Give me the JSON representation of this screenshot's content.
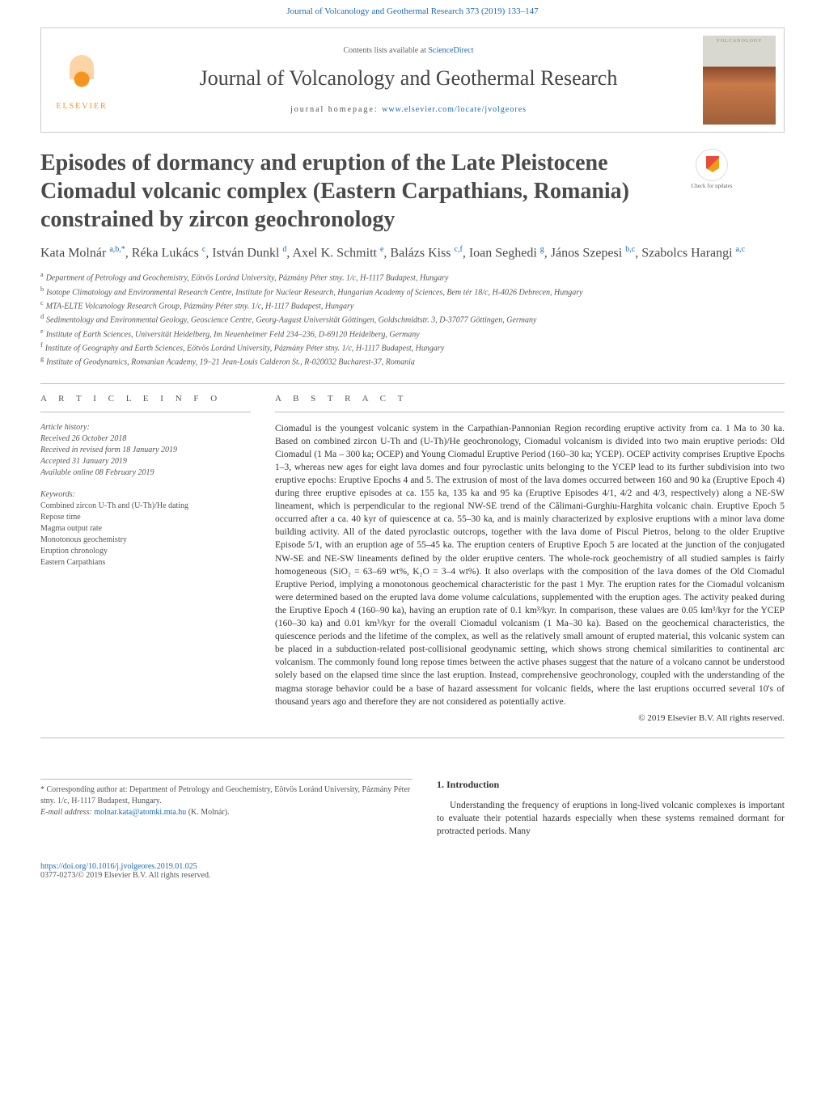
{
  "top_link": "Journal of Volcanology and Geothermal Research 373 (2019) 133–147",
  "header": {
    "contents_prefix": "Contents lists available at ",
    "contents_link": "ScienceDirect",
    "journal": "Journal of Volcanology and Geothermal Research",
    "homepage_prefix": "journal homepage: ",
    "homepage_url": "www.elsevier.com/locate/jvolgeores",
    "publisher": "ELSEVIER",
    "cover_label": "VOLCANOLOGY"
  },
  "check_updates": "Check for updates",
  "title": "Episodes of dormancy and eruption of the Late Pleistocene Ciomadul volcanic complex (Eastern Carpathians, Romania) constrained by zircon geochronology",
  "authors_html": "Kata Molnár <sup>a,b,*</sup>, Réka Lukács <sup>c</sup>, István Dunkl <sup>d</sup>, Axel K. Schmitt <sup>e</sup>, Balázs Kiss <sup>c,f</sup>, Ioan Seghedi <sup>g</sup>, János Szepesi <sup>b,c</sup>, Szabolcs Harangi <sup>a,c</sup>",
  "affiliations": [
    {
      "s": "a",
      "t": "Department of Petrology and Geochemistry, Eötvös Loránd University, Pázmány Péter stny. 1/c, H-1117 Budapest, Hungary"
    },
    {
      "s": "b",
      "t": "Isotope Climatology and Environmental Research Centre, Institute for Nuclear Research, Hungarian Academy of Sciences, Bem tér 18/c, H-4026 Debrecen, Hungary"
    },
    {
      "s": "c",
      "t": "MTA-ELTE Volcanology Research Group, Pázmány Péter stny. 1/c, H-1117 Budapest, Hungary"
    },
    {
      "s": "d",
      "t": "Sedimentology and Environmental Geology, Geoscience Centre, Georg-August Universität Göttingen, Goldschmidtstr. 3, D-37077 Göttingen, Germany"
    },
    {
      "s": "e",
      "t": "Institute of Earth Sciences, Universität Heidelberg, Im Neuenheimer Feld 234–236, D-69120 Heidelberg, Germany"
    },
    {
      "s": "f",
      "t": "Institute of Geography and Earth Sciences, Eötvös Loránd University, Pázmány Péter stny. 1/c, H-1117 Budapest, Hungary"
    },
    {
      "s": "g",
      "t": "Institute of Geodynamics, Romanian Academy, 19–21 Jean-Louis Calderon St., R-020032 Bucharest-37, Romania"
    }
  ],
  "article_info": {
    "head": "A R T I C L E   I N F O",
    "history_label": "Article history:",
    "history": [
      "Received 26 October 2018",
      "Received in revised form 18 January 2019",
      "Accepted 31 January 2019",
      "Available online 08 February 2019"
    ],
    "keywords_label": "Keywords:",
    "keywords": [
      "Combined zircon U-Th and (U-Th)/He dating",
      "Repose time",
      "Magma output rate",
      "Monotonous geochemistry",
      "Eruption chronology",
      "Eastern Carpathians"
    ]
  },
  "abstract": {
    "head": "A B S T R A C T",
    "text": "Ciomadul is the youngest volcanic system in the Carpathian-Pannonian Region recording eruptive activity from ca. 1 Ma to 30 ka. Based on combined zircon U-Th and (U-Th)/He geochronology, Ciomadul volcanism is divided into two main eruptive periods: Old Ciomadul (1 Ma – 300 ka; OCEP) and Young Ciomadul Eruptive Period (160–30 ka; YCEP). OCEP activity comprises Eruptive Epochs 1–3, whereas new ages for eight lava domes and four pyroclastic units belonging to the YCEP lead to its further subdivision into two eruptive epochs: Eruptive Epochs 4 and 5. The extrusion of most of the lava domes occurred between 160 and 90 ka (Eruptive Epoch 4) during three eruptive episodes at ca. 155 ka, 135 ka and 95 ka (Eruptive Episodes 4/1, 4/2 and 4/3, respectively) along a NE-SW lineament, which is perpendicular to the regional NW-SE trend of the Călimani-Gurghiu-Harghita volcanic chain. Eruptive Epoch 5 occurred after a ca. 40 kyr of quiescence at ca. 55–30 ka, and is mainly characterized by explosive eruptions with a minor lava dome building activity. All of the dated pyroclastic outcrops, together with the lava dome of Piscul Pietros, belong to the older Eruptive Episode 5/1, with an eruption age of 55–45 ka. The eruption centers of Eruptive Epoch 5 are located at the junction of the conjugated NW-SE and NE-SW lineaments defined by the older eruptive centers. The whole-rock geochemistry of all studied samples is fairly homogeneous (SiO₂ = 63–69 wt%, K₂O = 3–4 wt%). It also overlaps with the composition of the lava domes of the Old Ciomadul Eruptive Period, implying a monotonous geochemical characteristic for the past 1 Myr. The eruption rates for the Ciomadul volcanism were determined based on the erupted lava dome volume calculations, supplemented with the eruption ages. The activity peaked during the Eruptive Epoch 4 (160–90 ka), having an eruption rate of 0.1 km³/kyr. In comparison, these values are 0.05 km³/kyr for the YCEP (160–30 ka) and 0.01 km³/kyr for the overall Ciomadul volcanism (1 Ma–30 ka). Based on the geochemical characteristics, the quiescence periods and the lifetime of the complex, as well as the relatively small amount of erupted material, this volcanic system can be placed in a subduction-related post-collisional geodynamic setting, which shows strong chemical similarities to continental arc volcanism. The commonly found long repose times between the active phases suggest that the nature of a volcano cannot be understood solely based on the elapsed time since the last eruption. Instead, comprehensive geochronology, coupled with the understanding of the magma storage behavior could be a base of hazard assessment for volcanic fields, where the last eruptions occurred several 10's of thousand years ago and therefore they are not considered as potentially active.",
    "copyright": "© 2019 Elsevier B.V. All rights reserved."
  },
  "intro": {
    "head": "1. Introduction",
    "text": "Understanding the frequency of eruptions in long-lived volcanic complexes is important to evaluate their potential hazards especially when these systems remained dormant for protracted periods. Many"
  },
  "corresp": {
    "star": "*",
    "text": "Corresponding author at: Department of Petrology and Geochemistry, Eötvös Loránd University, Pázmány Péter stny. 1/c, H-1117 Budapest, Hungary.",
    "email_label": "E-mail address: ",
    "email": "molnar.kata@atomki.mta.hu",
    "email_suffix": " (K. Molnár)."
  },
  "footer": {
    "doi": "https://doi.org/10.1016/j.jvolgeores.2019.01.025",
    "issn": "0377-0273/© 2019 Elsevier B.V. All rights reserved."
  },
  "colors": {
    "link": "#1a6bb5",
    "text": "#333333",
    "muted": "#555555",
    "rule": "#bbbbbb",
    "elsevier": "#f7941e"
  }
}
